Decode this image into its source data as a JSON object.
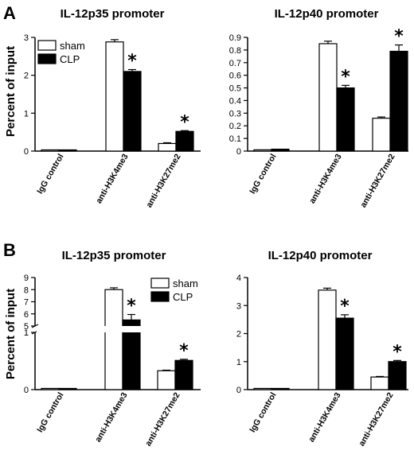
{
  "panels": [
    {
      "letter": "A"
    },
    {
      "letter": "B"
    }
  ],
  "ylabel_text": "Percent of input",
  "legend": {
    "sham": "sham",
    "clp": "CLP"
  },
  "significance_marker": "*",
  "chart_data": [
    {
      "type": "bar",
      "panel": "A",
      "title": "IL-12p35 promoter",
      "ylabel": "Percent of input",
      "categories": [
        "IgG control",
        "anti-H3K4me3",
        "anti-H3K27me2"
      ],
      "ylim": [
        0,
        3
      ],
      "yticks": [
        0,
        1,
        2,
        3
      ],
      "series": [
        {
          "name": "sham",
          "values": [
            0.03,
            2.88,
            0.2
          ],
          "errors": [
            0,
            0.06,
            0.02
          ]
        },
        {
          "name": "CLP",
          "values": [
            0.03,
            2.1,
            0.52
          ],
          "errors": [
            0,
            0.05,
            0.02
          ]
        }
      ],
      "significant": [
        {
          "category": "anti-H3K4me3",
          "series": "CLP"
        },
        {
          "category": "anti-H3K27me2",
          "series": "CLP"
        }
      ],
      "legend": "top-left",
      "grid": false
    },
    {
      "type": "bar",
      "panel": "A",
      "title": "IL-12p40 promoter",
      "ylabel": "",
      "categories": [
        "IgG control",
        "anti-H3K4me3",
        "anti-H3K27me2"
      ],
      "ylim": [
        0,
        0.9
      ],
      "yticks": [
        0,
        0.1,
        0.2,
        0.3,
        0.4,
        0.5,
        0.6,
        0.7,
        0.8,
        0.9
      ],
      "series": [
        {
          "name": "sham",
          "values": [
            0.01,
            0.85,
            0.26
          ],
          "errors": [
            0,
            0.02,
            0.01
          ]
        },
        {
          "name": "CLP",
          "values": [
            0.015,
            0.5,
            0.79
          ],
          "errors": [
            0,
            0.02,
            0.05
          ]
        }
      ],
      "significant": [
        {
          "category": "anti-H3K4me3",
          "series": "CLP"
        },
        {
          "category": "anti-H3K27me2",
          "series": "CLP"
        }
      ],
      "grid": false
    },
    {
      "type": "bar",
      "panel": "B",
      "title": "IL-12p35 promoter",
      "ylabel": "Percent of input",
      "categories": [
        "IgG control",
        "anti-H3K4me3",
        "anti-H3K27me2"
      ],
      "y_axis_break": {
        "lower": [
          0,
          1
        ],
        "upper": [
          5,
          9
        ]
      },
      "yticks": [
        0,
        1,
        5,
        6,
        7,
        8,
        9
      ],
      "series": [
        {
          "name": "sham",
          "values": [
            0.01,
            8.0,
            0.33
          ],
          "errors": [
            0,
            0.15,
            0.01
          ]
        },
        {
          "name": "CLP",
          "values": [
            0.01,
            5.5,
            0.51
          ],
          "errors": [
            0,
            0.45,
            0.02
          ]
        }
      ],
      "significant": [
        {
          "category": "anti-H3K4me3",
          "series": "CLP"
        },
        {
          "category": "anti-H3K27me2",
          "series": "CLP"
        }
      ],
      "legend": "top-right",
      "grid": false
    },
    {
      "type": "bar",
      "panel": "B",
      "title": "IL-12p40 promoter",
      "ylabel": "",
      "categories": [
        "IgG control",
        "anti-H3K4me3",
        "anti-H3K27me2"
      ],
      "ylim": [
        0,
        4
      ],
      "yticks": [
        0,
        1,
        2,
        3,
        4
      ],
      "series": [
        {
          "name": "sham",
          "values": [
            0.01,
            3.55,
            0.45
          ],
          "errors": [
            0,
            0.07,
            0.02
          ]
        },
        {
          "name": "CLP",
          "values": [
            0.01,
            2.55,
            1.0
          ],
          "errors": [
            0,
            0.12,
            0.04
          ]
        }
      ],
      "significant": [
        {
          "category": "anti-H3K4me3",
          "series": "CLP"
        },
        {
          "category": "anti-H3K27me2",
          "series": "CLP"
        }
      ],
      "grid": false
    }
  ]
}
